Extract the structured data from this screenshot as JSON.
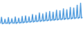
{
  "chart_data": {
    "type": "line",
    "color": "#3a8fd9",
    "grid": false,
    "tick_labels": false,
    "xlim": [
      0,
      95
    ],
    "ylim": [
      0,
      100
    ],
    "x": [
      0,
      1,
      2,
      3,
      4,
      5,
      6,
      7,
      8,
      9,
      10,
      11,
      12,
      13,
      14,
      15,
      16,
      17,
      18,
      19,
      20,
      21,
      22,
      23,
      24,
      25,
      26,
      27,
      28,
      29,
      30,
      31,
      32,
      33,
      34,
      35,
      36,
      37,
      38,
      39,
      40,
      41,
      42,
      43,
      44,
      45,
      46,
      47,
      48,
      49,
      50,
      51,
      52,
      53,
      54,
      55,
      56,
      57,
      58,
      59,
      60,
      61,
      62,
      63,
      64,
      65,
      66,
      67,
      68,
      69,
      70,
      71,
      72,
      73,
      74,
      75,
      76,
      77,
      78,
      79,
      80,
      81,
      82,
      83,
      84,
      85,
      86,
      87,
      88,
      89,
      90,
      91,
      92,
      93,
      94,
      95
    ],
    "values": [
      22,
      45,
      20,
      23,
      23,
      38,
      21,
      24,
      22,
      44,
      20,
      25,
      24,
      40,
      22,
      24,
      23,
      46,
      21,
      25,
      25,
      42,
      22,
      26,
      24,
      48,
      23,
      27,
      26,
      50,
      24,
      28,
      27,
      47,
      25,
      29,
      28,
      55,
      26,
      30,
      29,
      52,
      27,
      31,
      30,
      60,
      28,
      32,
      31,
      57,
      29,
      33,
      32,
      62,
      30,
      34,
      33,
      66,
      31,
      35,
      34,
      63,
      32,
      36,
      35,
      70,
      33,
      37,
      36,
      68,
      34,
      38,
      37,
      75,
      35,
      39,
      38,
      72,
      36,
      40,
      39,
      80,
      37,
      41,
      40,
      78,
      38,
      42,
      41,
      88,
      39,
      43,
      42,
      95,
      40,
      44
    ]
  }
}
